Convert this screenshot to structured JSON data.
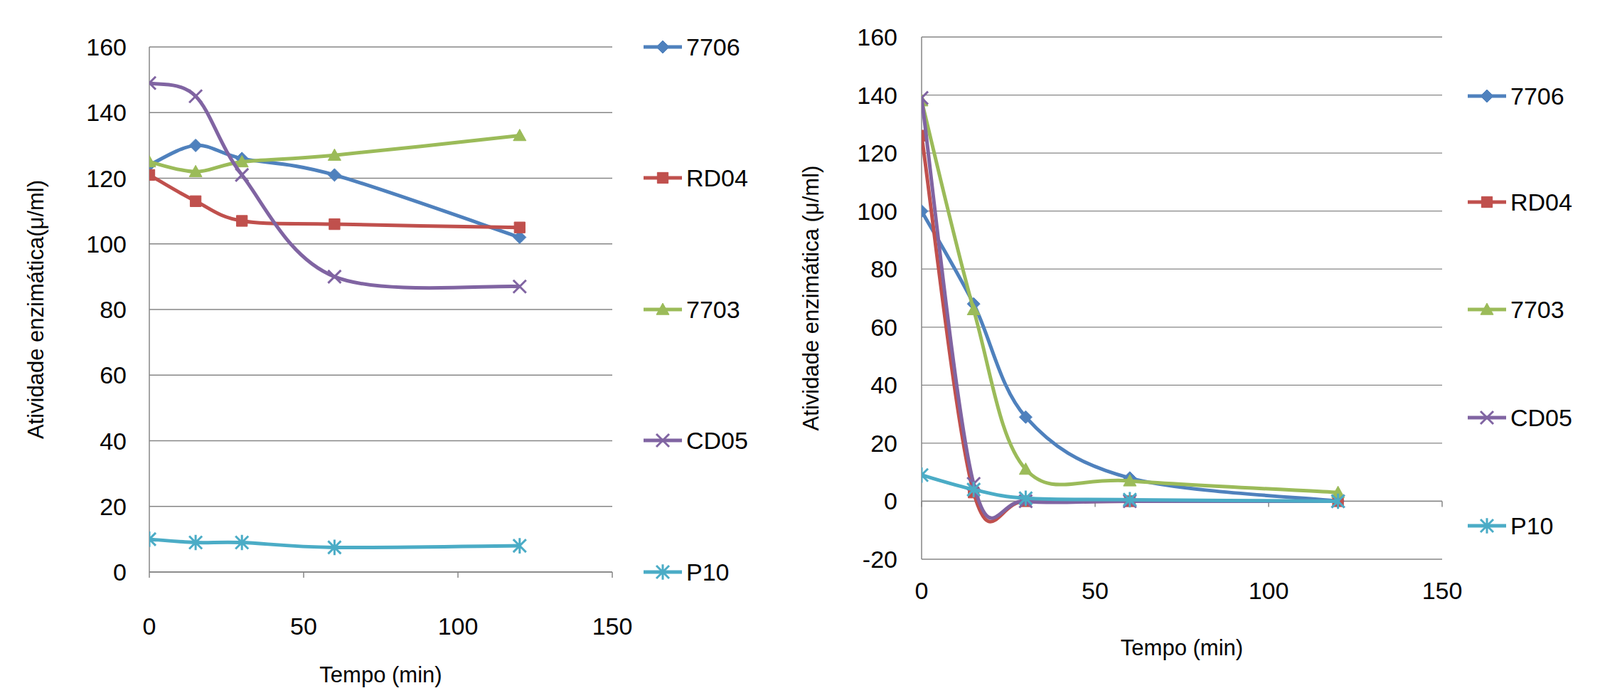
{
  "chart_data": [
    {
      "type": "line",
      "x_label": "Tempo (min)",
      "y_label": "Atividade enzimática(μ/ml)",
      "x": [
        0,
        15,
        30,
        60,
        120
      ],
      "xlim": [
        0,
        150
      ],
      "xticks": [
        0,
        50,
        100,
        150
      ],
      "ylim": [
        0,
        160
      ],
      "yticks": [
        0,
        20,
        40,
        60,
        80,
        100,
        120,
        140,
        160
      ],
      "grid": true,
      "legend": "right",
      "line_style": "smooth",
      "series": [
        {
          "name": "7706",
          "color": "#4f81bd",
          "marker": "diamond",
          "values": [
            124,
            130,
            126,
            121,
            102
          ]
        },
        {
          "name": "RD04",
          "color": "#c0504d",
          "marker": "square",
          "values": [
            121,
            113,
            107,
            106,
            105
          ]
        },
        {
          "name": "7703",
          "color": "#9bbb59",
          "marker": "triangle",
          "values": [
            125,
            122,
            125,
            127,
            133
          ]
        },
        {
          "name": "CD05",
          "color": "#8064a2",
          "marker": "x",
          "values": [
            149,
            145,
            121,
            90,
            87
          ]
        },
        {
          "name": "P10",
          "color": "#4bacc6",
          "marker": "star",
          "values": [
            10,
            9,
            9,
            7.5,
            8
          ]
        }
      ]
    },
    {
      "type": "line",
      "x_label": "Tempo (min)",
      "y_label": "Atividade enzimática (μ/ml)",
      "x": [
        0,
        15,
        30,
        60,
        120
      ],
      "xlim": [
        0,
        150
      ],
      "xticks": [
        0,
        50,
        100,
        150
      ],
      "ylim": [
        -20,
        160
      ],
      "yticks": [
        -20,
        0,
        20,
        40,
        60,
        80,
        100,
        120,
        140,
        160
      ],
      "grid": true,
      "legend": "right",
      "line_style": "smooth",
      "series": [
        {
          "name": "7706",
          "color": "#4f81bd",
          "marker": "diamond",
          "values": [
            100,
            68,
            29,
            8,
            0
          ]
        },
        {
          "name": "RD04",
          "color": "#c0504d",
          "marker": "square",
          "values": [
            126,
            3,
            0,
            0,
            0
          ]
        },
        {
          "name": "7703",
          "color": "#9bbb59",
          "marker": "triangle",
          "values": [
            138,
            66,
            11,
            7,
            3
          ]
        },
        {
          "name": "CD05",
          "color": "#8064a2",
          "marker": "x",
          "values": [
            139,
            6,
            0,
            0,
            0
          ]
        },
        {
          "name": "P10",
          "color": "#4bacc6",
          "marker": "star",
          "values": [
            9,
            4,
            1,
            0.5,
            0
          ]
        }
      ]
    }
  ]
}
